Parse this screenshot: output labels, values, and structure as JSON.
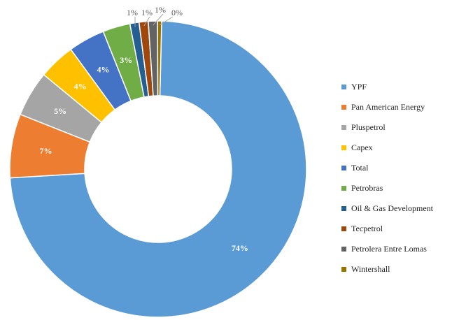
{
  "chart_data": {
    "type": "pie",
    "donut": true,
    "categories": [
      "YPF",
      "Pan American Energy",
      "Pluspetrol",
      "Capex",
      "Total",
      "Petrobras",
      "Oil & Gas Development",
      "Tecpetrol",
      "Petrolera Entre Lomas",
      "Wintershall"
    ],
    "values": [
      74,
      7,
      5,
      4,
      4,
      3,
      1,
      1,
      1,
      0
    ],
    "labels": [
      "74%",
      "7%",
      "5%",
      "4%",
      "4%",
      "3%",
      "1%",
      "1%",
      "1%",
      "0%"
    ],
    "colors": [
      "#5b9bd5",
      "#ed7d31",
      "#a5a5a5",
      "#ffc000",
      "#4472c4",
      "#70ad47",
      "#255e91",
      "#9e480e",
      "#636363",
      "#997300"
    ],
    "legend_position": "right",
    "title": ""
  }
}
